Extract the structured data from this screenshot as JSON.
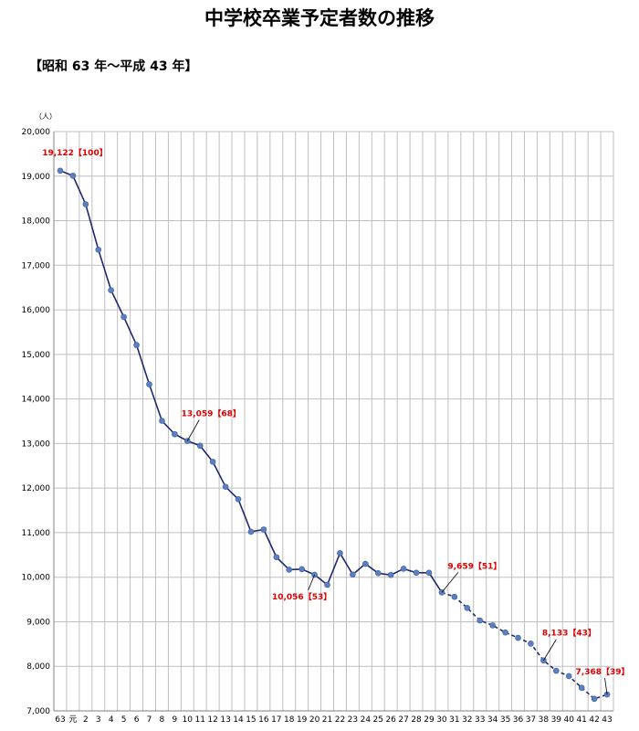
{
  "title": "中学校卒業予定者数の推移",
  "subtitle": "【昭和 63 年～平成 43 年】",
  "chart_data": {
    "type": "line",
    "yunit": "（人）",
    "ylim": [
      7000,
      20000
    ],
    "ystep": 1000,
    "grid": true,
    "colors": {
      "line": "#1f2a6e",
      "marker": "#5b7fc0",
      "annotation": "#e00000",
      "grid": "#bfbfbf"
    },
    "categories": [
      "63",
      "元",
      "2",
      "3",
      "4",
      "5",
      "6",
      "7",
      "8",
      "9",
      "10",
      "11",
      "12",
      "13",
      "14",
      "15",
      "16",
      "17",
      "18",
      "19",
      "20",
      "21",
      "22",
      "23",
      "24",
      "25",
      "26",
      "27",
      "28",
      "29",
      "30",
      "31",
      "32",
      "33",
      "34",
      "35",
      "36",
      "37",
      "38",
      "39",
      "40",
      "41",
      "42",
      "43"
    ],
    "values": [
      19122,
      19010,
      18370,
      17350,
      16440,
      15840,
      15210,
      14330,
      13510,
      13210,
      13059,
      12950,
      12590,
      12030,
      11750,
      11020,
      11070,
      10450,
      10170,
      10180,
      10056,
      9830,
      10540,
      10060,
      10300,
      10090,
      10050,
      10190,
      10100,
      10100,
      9659,
      9560,
      9310,
      9030,
      8920,
      8760,
      8640,
      8510,
      8133,
      7900,
      7780,
      7520,
      7270,
      7368
    ],
    "projected_from_index": 30,
    "annotations": [
      {
        "index": 0,
        "text": "19,122【100】"
      },
      {
        "index": 10,
        "text": "13,059【68】"
      },
      {
        "index": 20,
        "text": "10,056【53】"
      },
      {
        "index": 30,
        "text": "9,659【51】"
      },
      {
        "index": 38,
        "text": "8,133【43】"
      },
      {
        "index": 43,
        "text": "7,368【39】"
      }
    ]
  }
}
